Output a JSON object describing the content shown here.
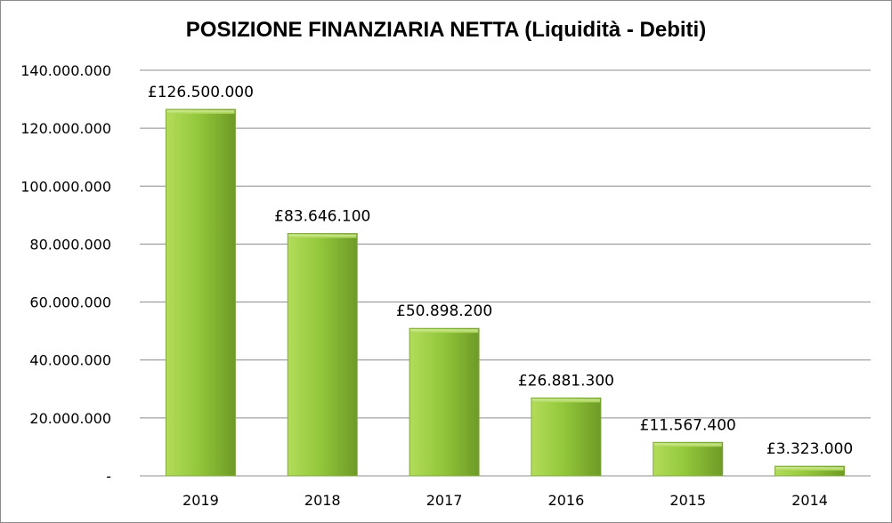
{
  "chart_data": {
    "type": "bar",
    "title": "POSIZIONE FINANZIARIA NETTA (Liquidità - Debiti)",
    "xlabel": "",
    "ylabel": "",
    "categories": [
      "2019",
      "2018",
      "2017",
      "2016",
      "2015",
      "2014"
    ],
    "values": [
      126500000,
      83646100,
      50898200,
      26881300,
      11567400,
      3323000
    ],
    "data_labels": [
      "£126.500.000",
      "£83.646.100",
      "£50.898.200",
      "£26.881.300",
      "£11.567.400",
      "£3.323.000"
    ],
    "ylim": [
      0,
      140000000
    ],
    "yticks": [
      0,
      20000000,
      40000000,
      60000000,
      80000000,
      100000000,
      120000000,
      140000000
    ],
    "ytick_labels": [
      "-",
      "20.000.000",
      "40.000.000",
      "60.000.000",
      "80.000.000",
      "100.000.000",
      "120.000.000",
      "140.000.000"
    ],
    "grid": true,
    "legend": "none",
    "colors": {
      "bar_light": "#b3dc5a",
      "bar_mid": "#94c83c",
      "bar_dark": "#6e9a26",
      "grid": "#8c8c8c"
    }
  }
}
